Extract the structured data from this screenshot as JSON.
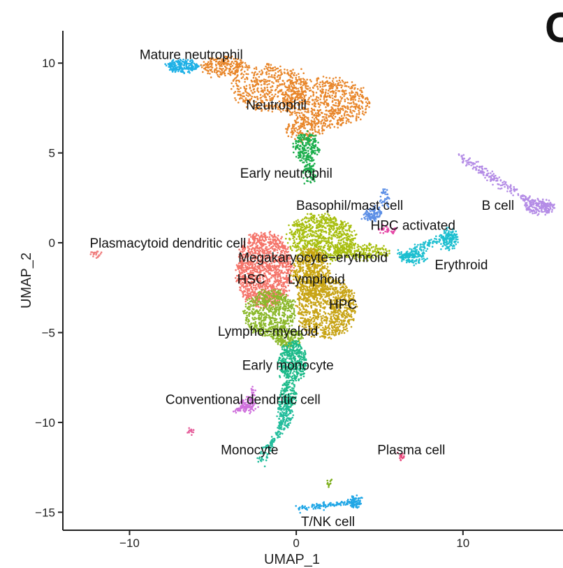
{
  "panel_letter": "C",
  "chart_data": {
    "type": "scatter",
    "xlabel": "UMAP_1",
    "ylabel": "UMAP_2",
    "xlim": [
      -14,
      16
    ],
    "ylim": [
      -16,
      11.8
    ],
    "x_ticks": [
      {
        "value": -10,
        "label": "−10"
      },
      {
        "value": 0,
        "label": "0"
      },
      {
        "value": 10,
        "label": "10"
      }
    ],
    "y_ticks": [
      {
        "value": 10,
        "label": "10"
      },
      {
        "value": 5,
        "label": "5"
      },
      {
        "value": 0,
        "label": "0"
      },
      {
        "value": -5,
        "label": "−5"
      },
      {
        "value": -10,
        "label": "−10"
      },
      {
        "value": -15,
        "label": "−15"
      }
    ],
    "grid": false,
    "legend": "none",
    "clusters": [
      {
        "name": "Mature neutrophil",
        "color": "#1fb1e6",
        "label_pos": [
          -6.3,
          10.5
        ],
        "regions": [
          {
            "cx": -6.8,
            "cy": 9.85,
            "rx": 1.0,
            "ry": 0.3,
            "n": 220
          }
        ]
      },
      {
        "name": "Neutrophil",
        "color": "#e8862a",
        "label_pos": [
          -1.2,
          7.7
        ],
        "regions": [
          {
            "cx": -4.3,
            "cy": 9.8,
            "rx": 1.4,
            "ry": 0.5,
            "n": 220
          },
          {
            "cx": -1.5,
            "cy": 8.6,
            "rx": 2.4,
            "ry": 1.25,
            "n": 520
          },
          {
            "cx": 1.8,
            "cy": 7.8,
            "rx": 2.6,
            "ry": 1.35,
            "n": 700
          },
          {
            "cx": 0.5,
            "cy": 6.3,
            "rx": 1.2,
            "ry": 0.6,
            "n": 160
          }
        ]
      },
      {
        "name": "Early neutrophil",
        "color": "#1cae4c",
        "label_pos": [
          -0.6,
          3.9
        ],
        "regions": [
          {
            "cx": 0.6,
            "cy": 5.3,
            "rx": 0.75,
            "ry": 0.8,
            "n": 230
          },
          {
            "cx": 0.8,
            "cy": 3.9,
            "rx": 0.35,
            "ry": 0.6,
            "n": 70
          }
        ]
      },
      {
        "name": "Basophil/mast cell",
        "color": "#5c8fe6",
        "label_pos": [
          3.2,
          2.1
        ],
        "regions": [
          {
            "cx": 4.6,
            "cy": 1.6,
            "rx": 0.55,
            "ry": 0.35,
            "n": 110
          },
          {
            "cx": 5.3,
            "cy": 2.5,
            "rx": 0.25,
            "ry": 0.45,
            "n": 35
          }
        ]
      },
      {
        "name": "B cell",
        "color": "#b48ce6",
        "label_pos": [
          12.1,
          2.1
        ],
        "regions": [
          {
            "cx": 14.6,
            "cy": 2.0,
            "rx": 0.9,
            "ry": 0.35,
            "n": 160
          }
        ],
        "lines": [
          {
            "from": [
              9.8,
              4.8
            ],
            "to": [
              13.5,
              2.6
            ],
            "n": 160,
            "width": 0.25
          },
          {
            "from": [
              13.5,
              2.6
            ],
            "to": [
              15.0,
              2.0
            ],
            "n": 60,
            "width": 0.2
          }
        ]
      },
      {
        "name": "HPC activated",
        "color": "#e64ba8",
        "label_pos": [
          7.0,
          1.0
        ],
        "regions": [
          {
            "cx": 5.5,
            "cy": 0.7,
            "rx": 0.55,
            "ry": 0.15,
            "n": 40
          }
        ]
      },
      {
        "name": "Erythroid",
        "color": "#1dbfd0",
        "label_pos": [
          9.9,
          -1.2
        ],
        "regions": [
          {
            "cx": 7.0,
            "cy": -0.8,
            "rx": 0.8,
            "ry": 0.35,
            "n": 110
          },
          {
            "cx": 9.2,
            "cy": 0.2,
            "rx": 0.5,
            "ry": 0.6,
            "n": 120
          }
        ],
        "lines": [
          {
            "from": [
              6.3,
              -0.8
            ],
            "to": [
              9.5,
              0.5
            ],
            "n": 130,
            "width": 0.3
          }
        ]
      },
      {
        "name": "Plasmacytoid dendritic cell",
        "color": "#f08080",
        "label_pos": [
          -7.7,
          0.0
        ],
        "regions": [
          {
            "cx": -12.0,
            "cy": -0.6,
            "rx": 0.25,
            "ry": 0.2,
            "n": 22
          }
        ]
      },
      {
        "name": "Megakaryocyte−erythroid",
        "color": "#a8bf10",
        "label_pos": [
          1.0,
          -0.8
        ],
        "regions": [
          {
            "cx": 1.5,
            "cy": 0.3,
            "rx": 2.0,
            "ry": 1.3,
            "n": 800
          },
          {
            "cx": 4.0,
            "cy": -0.5,
            "rx": 1.6,
            "ry": 0.4,
            "n": 220
          }
        ]
      },
      {
        "name": "HSC",
        "color": "#f5746a",
        "label_pos": [
          -2.7,
          -2.0
        ],
        "regions": [
          {
            "cx": -1.9,
            "cy": -1.5,
            "rx": 1.7,
            "ry": 2.1,
            "n": 1300
          }
        ]
      },
      {
        "name": "Lymphoid",
        "color": "#c9a512",
        "label_pos": [
          1.2,
          -2.0
        ],
        "regions": [
          {
            "cx": 0.9,
            "cy": -1.7,
            "rx": 1.1,
            "ry": 1.4,
            "n": 560
          }
        ]
      },
      {
        "name": "HPC",
        "color": "#c8a416",
        "label_pos": [
          2.8,
          -3.4
        ],
        "regions": [
          {
            "cx": 1.8,
            "cy": -3.6,
            "rx": 1.8,
            "ry": 1.7,
            "n": 900
          }
        ]
      },
      {
        "name": "Lympho−myeloid",
        "color": "#8bb82a",
        "label_pos": [
          -1.7,
          -4.9
        ],
        "regions": [
          {
            "cx": -1.6,
            "cy": -3.9,
            "rx": 1.5,
            "ry": 1.3,
            "n": 650
          },
          {
            "cx": -0.5,
            "cy": -5.3,
            "rx": 0.9,
            "ry": 0.5,
            "n": 200
          }
        ]
      },
      {
        "name": "Early monocyte",
        "color": "#1dbb8a",
        "label_pos": [
          -0.5,
          -6.8
        ],
        "regions": [
          {
            "cx": -0.2,
            "cy": -6.6,
            "rx": 0.8,
            "ry": 1.1,
            "n": 420
          },
          {
            "cx": -0.5,
            "cy": -8.5,
            "rx": 0.5,
            "ry": 0.8,
            "n": 160
          }
        ]
      },
      {
        "name": "Monocyte",
        "color": "#22bd9c",
        "label_pos": [
          -2.8,
          -11.5
        ],
        "regions": [
          {
            "cx": -0.7,
            "cy": -9.5,
            "rx": 0.45,
            "ry": 0.8,
            "n": 120
          }
        ],
        "lines": [
          {
            "from": [
              -0.7,
              -10.0
            ],
            "to": [
              -2.2,
              -12.2
            ],
            "n": 100,
            "width": 0.25
          }
        ]
      },
      {
        "name": "Conventional dendritic cell",
        "color": "#cf70dc",
        "label_pos": [
          -3.2,
          -8.7
        ],
        "regions": [
          {
            "cx": -2.9,
            "cy": -9.0,
            "rx": 0.55,
            "ry": 0.4,
            "n": 70
          }
        ],
        "lines": [
          {
            "from": [
              -3.8,
              -9.4
            ],
            "to": [
              -2.8,
              -9.0
            ],
            "n": 40,
            "width": 0.15
          },
          {
            "from": [
              -2.7,
              -9.0
            ],
            "to": [
              -2.6,
              -8.0
            ],
            "n": 30,
            "width": 0.15
          }
        ]
      },
      {
        "name": "Plasma cell",
        "color": "#e8467a",
        "label_pos": [
          6.9,
          -11.5
        ],
        "regions": [
          {
            "cx": 6.3,
            "cy": -11.9,
            "rx": 0.15,
            "ry": 0.2,
            "n": 14
          }
        ]
      },
      {
        "name": "T/NK cell",
        "color": "#22a7e6",
        "label_pos": [
          1.9,
          -15.5
        ],
        "regions": [
          {
            "cx": 3.6,
            "cy": -14.4,
            "rx": 0.35,
            "ry": 0.3,
            "n": 60
          }
        ],
        "lines": [
          {
            "from": [
              0.1,
              -14.8
            ],
            "to": [
              3.6,
              -14.4
            ],
            "n": 120,
            "width": 0.18
          }
        ]
      }
    ],
    "minor_clusters": [
      {
        "color": "#e6609c",
        "regions": [
          {
            "cx": -6.3,
            "cy": -10.5,
            "rx": 0.2,
            "ry": 0.15,
            "n": 16
          }
        ]
      },
      {
        "color": "#7cae1a",
        "regions": [
          {
            "cx": 2.0,
            "cy": -13.4,
            "rx": 0.15,
            "ry": 0.2,
            "n": 12
          }
        ]
      }
    ]
  }
}
